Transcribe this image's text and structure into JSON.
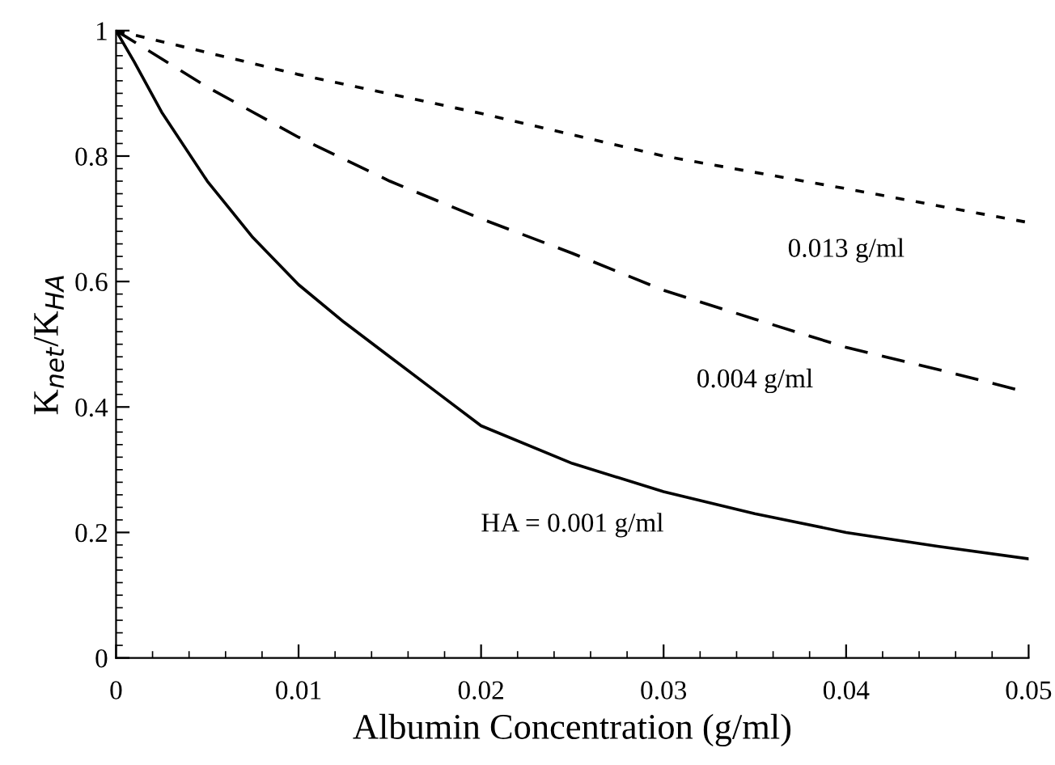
{
  "chart_data": {
    "type": "line",
    "xlabel": "Albumin Concentration (g/ml)",
    "ylabel": "K$_{net}$/K$_{HA}$",
    "xlim": [
      0,
      0.05
    ],
    "ylim": [
      0,
      1
    ],
    "xticks": [
      0,
      0.01,
      0.02,
      0.03,
      0.04,
      0.05
    ],
    "yticks": [
      0,
      0.2,
      0.4,
      0.6,
      0.8,
      1
    ],
    "grid": false,
    "marker": "none",
    "series": [
      {
        "name": "HA = 0.001 g/ml",
        "color": "#000000",
        "line_style": "solid",
        "x": [
          0,
          0.001,
          0.0025,
          0.005,
          0.0075,
          0.01,
          0.0125,
          0.015,
          0.0175,
          0.02,
          0.025,
          0.03,
          0.035,
          0.04,
          0.045,
          0.05
        ],
        "values": [
          1,
          0.95,
          0.87,
          0.76,
          0.67,
          0.595,
          0.535,
          0.48,
          0.425,
          0.37,
          0.31,
          0.265,
          0.23,
          0.2,
          0.178,
          0.158
        ]
      },
      {
        "name": "0.004 g/ml",
        "color": "#000000",
        "line_style": "dashed",
        "x": [
          0,
          0.005,
          0.01,
          0.015,
          0.02,
          0.025,
          0.03,
          0.035,
          0.04,
          0.045,
          0.05
        ],
        "values": [
          1,
          0.91,
          0.83,
          0.76,
          0.7,
          0.645,
          0.586,
          0.54,
          0.495,
          0.46,
          0.423
        ]
      },
      {
        "name": "0.013 g/ml",
        "color": "#000000",
        "line_style": "dotted",
        "x": [
          0,
          0.01,
          0.02,
          0.03,
          0.04,
          0.05
        ],
        "values": [
          1,
          0.93,
          0.868,
          0.8,
          0.748,
          0.694
        ]
      }
    ]
  }
}
